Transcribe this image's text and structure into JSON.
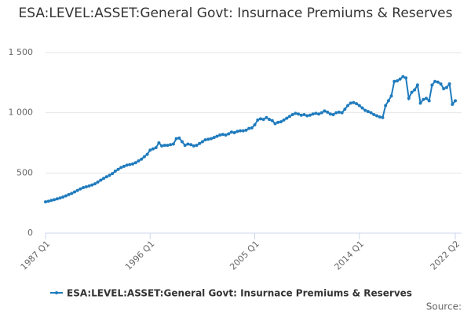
{
  "chart_data": {
    "type": "line",
    "title": "ESA:LEVEL:ASSET:General Govt: Insurnace Premiums & Reserves",
    "source": "Source:",
    "categories": [
      "1987 Q1",
      null,
      null,
      null,
      null,
      null,
      null,
      null,
      null,
      null,
      null,
      null,
      null,
      null,
      null,
      null,
      null,
      null,
      null,
      null,
      null,
      null,
      null,
      null,
      null,
      null,
      null,
      null,
      null,
      null,
      null,
      null,
      null,
      null,
      null,
      null,
      "1996 Q1",
      null,
      null,
      null,
      null,
      null,
      null,
      null,
      null,
      null,
      null,
      null,
      null,
      null,
      null,
      null,
      null,
      null,
      null,
      null,
      null,
      null,
      null,
      null,
      null,
      null,
      null,
      null,
      null,
      null,
      null,
      null,
      null,
      null,
      null,
      null,
      "2005 Q1",
      null,
      null,
      null,
      null,
      null,
      null,
      null,
      null,
      null,
      null,
      null,
      null,
      null,
      null,
      null,
      null,
      null,
      null,
      null,
      null,
      null,
      null,
      null,
      null,
      null,
      null,
      null,
      null,
      null,
      null,
      null,
      null,
      null,
      null,
      null,
      "2014 Q1",
      null,
      null,
      null,
      null,
      null,
      null,
      null,
      null,
      null,
      null,
      null,
      null,
      null,
      null,
      null,
      null,
      null,
      null,
      null,
      null,
      null,
      null,
      null,
      null,
      null,
      null,
      null,
      null,
      null,
      null,
      null,
      null,
      "2022 Q2"
    ],
    "series": [
      {
        "name": "ESA:LEVEL:ASSET:General Govt: Insurnace Premiums & Reserves",
        "color": "#1f7bbd",
        "values": [
          260,
          265,
          272,
          278,
          285,
          292,
          300,
          310,
          320,
          330,
          342,
          355,
          368,
          378,
          385,
          392,
          400,
          410,
          425,
          440,
          455,
          468,
          480,
          495,
          515,
          530,
          545,
          555,
          565,
          570,
          575,
          585,
          600,
          615,
          635,
          655,
          690,
          700,
          710,
          750,
          725,
          730,
          730,
          735,
          740,
          785,
          790,
          760,
          730,
          740,
          735,
          725,
          730,
          745,
          760,
          775,
          780,
          785,
          795,
          805,
          815,
          820,
          815,
          825,
          840,
          835,
          845,
          850,
          850,
          855,
          870,
          875,
          900,
          940,
          950,
          945,
          960,
          945,
          935,
          910,
          920,
          925,
          940,
          955,
          970,
          985,
          995,
          990,
          980,
          985,
          975,
          980,
          990,
          995,
          990,
          1000,
          1015,
          1005,
          990,
          985,
          1000,
          1005,
          1000,
          1030,
          1060,
          1080,
          1085,
          1075,
          1060,
          1040,
          1020,
          1010,
          1000,
          985,
          975,
          965,
          960,
          1060,
          1100,
          1140,
          1260,
          1265,
          1280,
          1300,
          1290,
          1120,
          1170,
          1190,
          1230,
          1080,
          1110,
          1120,
          1100,
          1230,
          1260,
          1255,
          1240,
          1200,
          1210,
          1240,
          1070,
          1100
        ]
      }
    ],
    "ylim": [
      0,
      1500
    ],
    "yticks": [
      0,
      500,
      {
        "value": 1000,
        "label": "1 000"
      },
      {
        "value": 1500,
        "label": "1 500"
      }
    ],
    "grid": true
  }
}
